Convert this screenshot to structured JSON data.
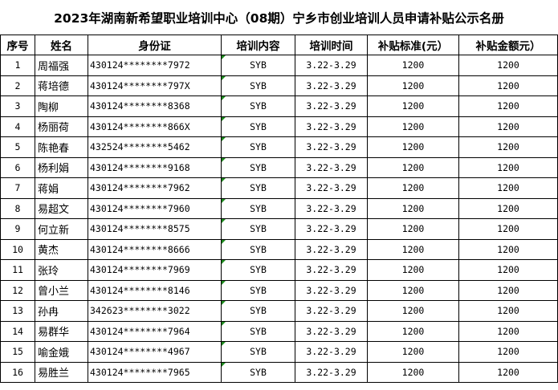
{
  "title": "2023年湖南新希望职业培训中心（08期）宁乡市创业培训人员申请补贴公示名册",
  "headers": [
    "序号",
    "姓名",
    "身份证",
    "培训内容",
    "培训时间",
    "补贴标准(元）",
    "补贴金额元）"
  ],
  "rows": [
    {
      "no": "1",
      "name": "周福强",
      "id": "430124********7972",
      "course": "SYB",
      "period": "3.22-3.29",
      "standard": "1200",
      "amount": "1200"
    },
    {
      "no": "2",
      "name": "蒋培德",
      "id": "430124********797X",
      "course": "SYB",
      "period": "3.22-3.29",
      "standard": "1200",
      "amount": "1200"
    },
    {
      "no": "3",
      "name": "陶柳",
      "id": "430124********8368",
      "course": "SYB",
      "period": "3.22-3.29",
      "standard": "1200",
      "amount": "1200"
    },
    {
      "no": "4",
      "name": "杨丽荷",
      "id": "430124********866X",
      "course": "SYB",
      "period": "3.22-3.29",
      "standard": "1200",
      "amount": "1200"
    },
    {
      "no": "5",
      "name": "陈艳春",
      "id": "432524********5462",
      "course": "SYB",
      "period": "3.22-3.29",
      "standard": "1200",
      "amount": "1200"
    },
    {
      "no": "6",
      "name": "杨利娟",
      "id": "430124********9168",
      "course": "SYB",
      "period": "3.22-3.29",
      "standard": "1200",
      "amount": "1200"
    },
    {
      "no": "7",
      "name": "蒋娟",
      "id": "430124********7962",
      "course": "SYB",
      "period": "3.22-3.29",
      "standard": "1200",
      "amount": "1200"
    },
    {
      "no": "8",
      "name": "易超文",
      "id": "430124********7960",
      "course": "SYB",
      "period": "3.22-3.29",
      "standard": "1200",
      "amount": "1200"
    },
    {
      "no": "9",
      "name": "何立新",
      "id": "430124********8575",
      "course": "SYB",
      "period": "3.22-3.29",
      "standard": "1200",
      "amount": "1200"
    },
    {
      "no": "10",
      "name": "黄杰",
      "id": "430124********8666",
      "course": "SYB",
      "period": "3.22-3.29",
      "standard": "1200",
      "amount": "1200"
    },
    {
      "no": "11",
      "name": "张玲",
      "id": "430124********7969",
      "course": "SYB",
      "period": "3.22-3.29",
      "standard": "1200",
      "amount": "1200"
    },
    {
      "no": "12",
      "name": "曾小兰",
      "id": "430124********8146",
      "course": "SYB",
      "period": "3.22-3.29",
      "standard": "1200",
      "amount": "1200"
    },
    {
      "no": "13",
      "name": "孙冉",
      "id": "342623********3022",
      "course": "SYB",
      "period": "3.22-3.29",
      "standard": "1200",
      "amount": "1200"
    },
    {
      "no": "14",
      "name": "易群华",
      "id": "430124********7964",
      "course": "SYB",
      "period": "3.22-3.29",
      "standard": "1200",
      "amount": "1200"
    },
    {
      "no": "15",
      "name": "喻金娥",
      "id": "430124********4967",
      "course": "SYB",
      "period": "3.22-3.29",
      "standard": "1200",
      "amount": "1200"
    },
    {
      "no": "16",
      "name": "易胜兰",
      "id": "430124********7965",
      "course": "SYB",
      "period": "3.22-3.29",
      "standard": "1200",
      "amount": "1200"
    }
  ],
  "colors": {
    "comment_marker": "#1e8a1e",
    "border": "#000000"
  }
}
